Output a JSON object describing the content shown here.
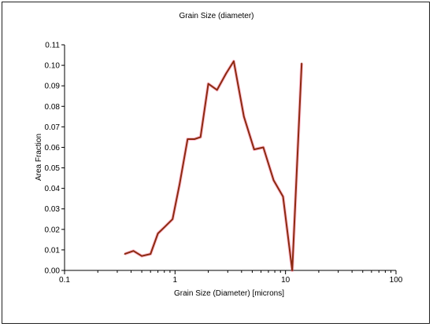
{
  "chart_data": {
    "type": "line",
    "title": "Grain Size (diameter)",
    "xlabel": "Grain Size (Diameter) [microns]",
    "ylabel": "Area Fraction",
    "x_scale": "log",
    "xlim": [
      0.1,
      100
    ],
    "ylim": [
      0,
      0.11
    ],
    "x_ticks": [
      "0.1",
      "1",
      "10",
      "100"
    ],
    "y_ticks": [
      "0.00",
      "0.01",
      "0.02",
      "0.03",
      "0.04",
      "0.05",
      "0.06",
      "0.07",
      "0.08",
      "0.09",
      "0.10",
      "0.11"
    ],
    "grid": false,
    "legend": "none",
    "series": [
      {
        "color": "#8b2a10",
        "x": [
          0.35,
          0.42,
          0.5,
          0.6,
          0.7,
          0.8,
          0.95,
          1.1,
          1.3,
          1.5,
          1.7,
          2.0,
          2.4,
          2.9,
          3.4,
          4.2,
          5.2,
          6.3,
          7.8,
          9.5,
          11.5,
          14.0
        ],
        "y": [
          0.008,
          0.0095,
          0.007,
          0.008,
          0.018,
          0.021,
          0.025,
          0.042,
          0.064,
          0.064,
          0.065,
          0.091,
          0.088,
          0.096,
          0.102,
          0.075,
          0.059,
          0.06,
          0.044,
          0.036,
          0.0,
          0.101
        ]
      }
    ]
  }
}
